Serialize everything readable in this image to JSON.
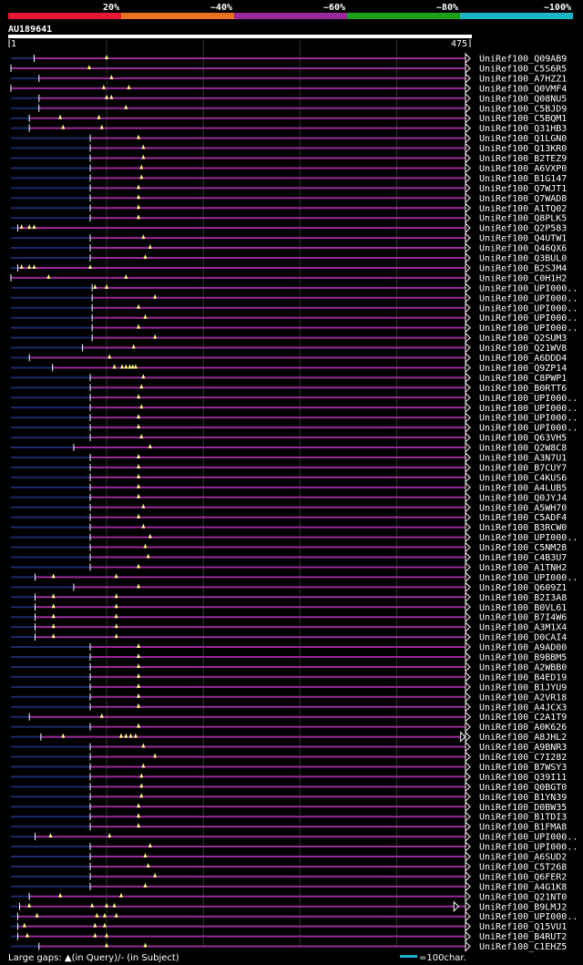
{
  "chart_data": {
    "type": "alignment-overview",
    "query": {
      "name": "AU189641",
      "start": "1",
      "end": "475",
      "length": 475
    },
    "identity_scale": [
      {
        "label": "20%",
        "color": "#e8173a"
      },
      {
        "label": "~40%",
        "color": "#e8731f"
      },
      {
        "label": "~60%",
        "color": "#9a2a9a"
      },
      {
        "label": "~80%",
        "color": "#1aa01a"
      },
      {
        "label": "~100%",
        "color": "#1ab4c8"
      }
    ],
    "hit_color": "#9a2a9a",
    "legend": {
      "gaps": "Large gaps: ▲(in Query)/- (in Subject)",
      "scale": "=100char.",
      "scale_chars": 100
    },
    "hits": [
      {
        "name": "UniRef100_Q09AB9",
        "s": 25,
        "e": 475,
        "gaps": [
          100
        ]
      },
      {
        "name": "UniRef100_C5S6R5",
        "s": 1,
        "e": 475,
        "gaps": [
          82
        ]
      },
      {
        "name": "UniRef100_A7HZZ1",
        "s": 30,
        "e": 475,
        "gaps": [
          105
        ]
      },
      {
        "name": "UniRef100_Q0VMF4",
        "s": 1,
        "e": 475,
        "gaps": [
          97,
          123
        ]
      },
      {
        "name": "UniRef100_Q08NU5",
        "s": 30,
        "e": 475,
        "gaps": [
          100,
          105
        ]
      },
      {
        "name": "UniRef100_C5BJD9",
        "s": 30,
        "e": 475,
        "gaps": [
          120
        ]
      },
      {
        "name": "UniRef100_C5BQM1",
        "s": 20,
        "e": 475,
        "gaps": [
          52,
          92
        ]
      },
      {
        "name": "UniRef100_Q31HB3",
        "s": 20,
        "e": 475,
        "gaps": [
          55,
          95
        ]
      },
      {
        "name": "UniRef100_Q1LGN0",
        "s": 83,
        "e": 475,
        "gaps": [
          133
        ]
      },
      {
        "name": "UniRef100_Q13KR0",
        "s": 83,
        "e": 475,
        "gaps": [
          138
        ]
      },
      {
        "name": "UniRef100_B2TEZ9",
        "s": 83,
        "e": 475,
        "gaps": [
          138
        ]
      },
      {
        "name": "UniRef100_A6VXP0",
        "s": 83,
        "e": 475,
        "gaps": [
          136
        ]
      },
      {
        "name": "UniRef100_B1G147",
        "s": 83,
        "e": 475,
        "gaps": [
          136
        ]
      },
      {
        "name": "UniRef100_Q7WJT1",
        "s": 83,
        "e": 475,
        "gaps": [
          133
        ]
      },
      {
        "name": "UniRef100_Q7WAD8",
        "s": 83,
        "e": 475,
        "gaps": [
          133
        ]
      },
      {
        "name": "UniRef100_A1TQ02",
        "s": 83,
        "e": 475,
        "gaps": [
          133
        ]
      },
      {
        "name": "UniRef100_Q8PLK5",
        "s": 83,
        "e": 475,
        "gaps": [
          133
        ]
      },
      {
        "name": "UniRef100_Q2P583",
        "s": 8,
        "e": 475,
        "gaps": [
          12,
          20,
          25
        ]
      },
      {
        "name": "UniRef100_Q4UTW1",
        "s": 83,
        "e": 475,
        "gaps": [
          138
        ]
      },
      {
        "name": "UniRef100_Q46QX6",
        "s": 83,
        "e": 475,
        "gaps": [
          145
        ]
      },
      {
        "name": "UniRef100_Q3BUL0",
        "s": 83,
        "e": 475,
        "gaps": [
          140
        ]
      },
      {
        "name": "UniRef100_B2SJM4",
        "s": 8,
        "e": 475,
        "gaps": [
          12,
          20,
          25,
          83
        ]
      },
      {
        "name": "UniRef100_C0H1H2",
        "s": 1,
        "e": 475,
        "gaps": [
          40,
          120
        ]
      },
      {
        "name": "UniRef100_UPI000..",
        "s": 85,
        "e": 475,
        "gaps": [
          88,
          100
        ]
      },
      {
        "name": "UniRef100_UPI000..",
        "s": 85,
        "e": 475,
        "gaps": [
          150
        ]
      },
      {
        "name": "UniRef100_UPI000..",
        "s": 85,
        "e": 475,
        "gaps": [
          133
        ]
      },
      {
        "name": "UniRef100_UPI000..",
        "s": 85,
        "e": 475,
        "gaps": [
          140
        ]
      },
      {
        "name": "UniRef100_UPI000..",
        "s": 85,
        "e": 475,
        "gaps": [
          133
        ]
      },
      {
        "name": "UniRef100_Q2SUM3",
        "s": 85,
        "e": 475,
        "gaps": [
          150
        ]
      },
      {
        "name": "UniRef100_Q21WV8",
        "s": 75,
        "e": 475,
        "gaps": [
          128
        ]
      },
      {
        "name": "UniRef100_A6DDD4",
        "s": 20,
        "e": 475,
        "gaps": [
          103
        ]
      },
      {
        "name": "UniRef100_Q9ZP14",
        "s": 44,
        "e": 475,
        "gaps": [
          108,
          116,
          120,
          124,
          127,
          130
        ]
      },
      {
        "name": "UniRef100_C8PWP1",
        "s": 83,
        "e": 475,
        "gaps": [
          138
        ]
      },
      {
        "name": "UniRef100_B0RTT6",
        "s": 83,
        "e": 475,
        "gaps": [
          136
        ]
      },
      {
        "name": "UniRef100_UPI000..",
        "s": 83,
        "e": 475,
        "gaps": [
          133
        ]
      },
      {
        "name": "UniRef100_UPI000..",
        "s": 83,
        "e": 475,
        "gaps": [
          136
        ]
      },
      {
        "name": "UniRef100_UPI000..",
        "s": 83,
        "e": 475,
        "gaps": [
          133
        ]
      },
      {
        "name": "UniRef100_UPI000..",
        "s": 83,
        "e": 475,
        "gaps": [
          133
        ]
      },
      {
        "name": "UniRef100_Q63VH5",
        "s": 83,
        "e": 475,
        "gaps": [
          136
        ]
      },
      {
        "name": "UniRef100_Q2W8C8",
        "s": 66,
        "e": 475,
        "gaps": [
          145
        ]
      },
      {
        "name": "UniRef100_A3N7U1",
        "s": 83,
        "e": 475,
        "gaps": [
          133
        ]
      },
      {
        "name": "UniRef100_B7CUY7",
        "s": 83,
        "e": 475,
        "gaps": [
          133
        ]
      },
      {
        "name": "UniRef100_C4KUS6",
        "s": 83,
        "e": 475,
        "gaps": [
          133
        ]
      },
      {
        "name": "UniRef100_A4LUB5",
        "s": 83,
        "e": 475,
        "gaps": [
          133
        ]
      },
      {
        "name": "UniRef100_Q0JYJ4",
        "s": 83,
        "e": 475,
        "gaps": [
          133
        ]
      },
      {
        "name": "UniRef100_A5WH70",
        "s": 83,
        "e": 475,
        "gaps": [
          138
        ]
      },
      {
        "name": "UniRef100_C5ADF4",
        "s": 83,
        "e": 475,
        "gaps": [
          133
        ]
      },
      {
        "name": "UniRef100_B3RCW0",
        "s": 83,
        "e": 475,
        "gaps": [
          138
        ]
      },
      {
        "name": "UniRef100_UPI000..",
        "s": 83,
        "e": 475,
        "gaps": [
          145
        ]
      },
      {
        "name": "UniRef100_C5NM28",
        "s": 83,
        "e": 475,
        "gaps": [
          140
        ]
      },
      {
        "name": "UniRef100_C4B3U7",
        "s": 83,
        "e": 475,
        "gaps": [
          143
        ]
      },
      {
        "name": "UniRef100_A1TNH2",
        "s": 83,
        "e": 475,
        "gaps": [
          133
        ]
      },
      {
        "name": "UniRef100_UPI000..",
        "s": 26,
        "e": 475,
        "gaps": [
          45,
          110
        ]
      },
      {
        "name": "UniRef100_Q609Z1",
        "s": 66,
        "e": 475,
        "gaps": [
          133
        ]
      },
      {
        "name": "UniRef100_B2I3A8",
        "s": 26,
        "e": 475,
        "gaps": [
          45,
          110
        ]
      },
      {
        "name": "UniRef100_B0VL61",
        "s": 26,
        "e": 475,
        "gaps": [
          45,
          110
        ]
      },
      {
        "name": "UniRef100_B7I4W6",
        "s": 26,
        "e": 475,
        "gaps": [
          45,
          110
        ]
      },
      {
        "name": "UniRef100_A3M1X4",
        "s": 26,
        "e": 475,
        "gaps": [
          45,
          110
        ]
      },
      {
        "name": "UniRef100_D0CAI4",
        "s": 26,
        "e": 475,
        "gaps": [
          45,
          110
        ]
      },
      {
        "name": "UniRef100_A9AD00",
        "s": 83,
        "e": 475,
        "gaps": [
          133
        ]
      },
      {
        "name": "UniRef100_B9BBM5",
        "s": 83,
        "e": 475,
        "gaps": [
          133
        ]
      },
      {
        "name": "UniRef100_A2WBB0",
        "s": 83,
        "e": 475,
        "gaps": [
          133
        ]
      },
      {
        "name": "UniRef100_B4ED19",
        "s": 83,
        "e": 475,
        "gaps": [
          133
        ]
      },
      {
        "name": "UniRef100_B1JYU9",
        "s": 83,
        "e": 475,
        "gaps": [
          133
        ]
      },
      {
        "name": "UniRef100_A2VR18",
        "s": 83,
        "e": 475,
        "gaps": [
          133
        ]
      },
      {
        "name": "UniRef100_A4JCX3",
        "s": 83,
        "e": 475,
        "gaps": [
          133
        ]
      },
      {
        "name": "UniRef100_C2A1T9",
        "s": 20,
        "e": 475,
        "gaps": [
          95
        ]
      },
      {
        "name": "UniRef100_A0K626",
        "s": 83,
        "e": 475,
        "gaps": [
          133
        ]
      },
      {
        "name": "UniRef100_A8JHL2",
        "s": 32,
        "e": 475,
        "gaps": [
          55,
          115,
          120,
          125,
          130
        ],
        "arrow_at": 470
      },
      {
        "name": "UniRef100_A9BNR3",
        "s": 83,
        "e": 475,
        "gaps": [
          138
        ]
      },
      {
        "name": "UniRef100_C7I282",
        "s": 83,
        "e": 475,
        "gaps": [
          150
        ]
      },
      {
        "name": "UniRef100_B7WSY3",
        "s": 83,
        "e": 475,
        "gaps": [
          138
        ]
      },
      {
        "name": "UniRef100_Q39I11",
        "s": 83,
        "e": 475,
        "gaps": [
          136
        ]
      },
      {
        "name": "UniRef100_Q0BGT0",
        "s": 83,
        "e": 475,
        "gaps": [
          136
        ]
      },
      {
        "name": "UniRef100_B1YN39",
        "s": 83,
        "e": 475,
        "gaps": [
          136
        ]
      },
      {
        "name": "UniRef100_D0BW35",
        "s": 83,
        "e": 475,
        "gaps": [
          133
        ]
      },
      {
        "name": "UniRef100_B1TDI3",
        "s": 83,
        "e": 475,
        "gaps": [
          133
        ]
      },
      {
        "name": "UniRef100_B1FMA8",
        "s": 83,
        "e": 475,
        "gaps": [
          133
        ]
      },
      {
        "name": "UniRef100_UPI000..",
        "s": 26,
        "e": 475,
        "gaps": [
          42,
          103
        ]
      },
      {
        "name": "UniRef100_UPI000..",
        "s": 83,
        "e": 475,
        "gaps": [
          145
        ]
      },
      {
        "name": "UniRef100_A6SUD2",
        "s": 83,
        "e": 475,
        "gaps": [
          140
        ]
      },
      {
        "name": "UniRef100_C5T268",
        "s": 83,
        "e": 475,
        "gaps": [
          143
        ]
      },
      {
        "name": "UniRef100_Q6FER2",
        "s": 83,
        "e": 475,
        "gaps": [
          150
        ]
      },
      {
        "name": "UniRef100_A4G1K8",
        "s": 83,
        "e": 475,
        "gaps": [
          140
        ]
      },
      {
        "name": "UniRef100_Q21NT0",
        "s": 20,
        "e": 475,
        "gaps": [
          52,
          115
        ]
      },
      {
        "name": "UniRef100_B9LMJ2",
        "s": 10,
        "e": 475,
        "gaps": [
          20,
          85,
          100,
          108
        ],
        "arrow_at": 463
      },
      {
        "name": "UniRef100_UPI000..",
        "s": 8,
        "e": 475,
        "gaps": [
          28,
          90,
          98,
          110
        ]
      },
      {
        "name": "UniRef100_Q15VU1",
        "s": 8,
        "e": 475,
        "gaps": [
          15,
          88,
          98
        ]
      },
      {
        "name": "UniRef100_B4RUT2",
        "s": 8,
        "e": 475,
        "gaps": [
          18,
          88,
          100
        ]
      },
      {
        "name": "UniRef100_C1EHZ5",
        "s": 30,
        "e": 475,
        "gaps": [
          100,
          140
        ]
      }
    ]
  }
}
